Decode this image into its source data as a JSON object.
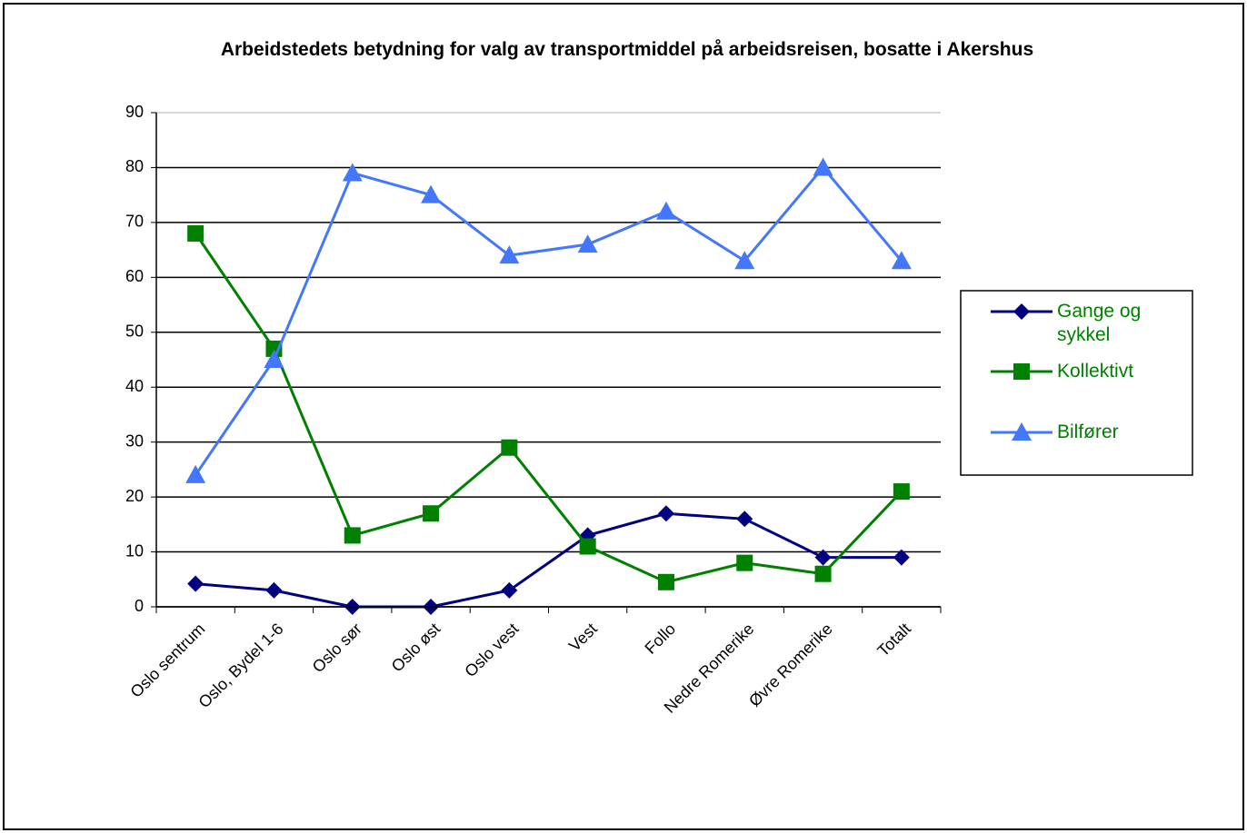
{
  "chart_data": {
    "type": "line",
    "title": "Arbeidstedets betydning for valg av transportmiddel på arbeidsreisen, bosatte i Akershus",
    "categories": [
      "Oslo sentrum",
      "Oslo, Bydel 1-6",
      "Oslo sør",
      "Oslo øst",
      "Oslo vest",
      "Vest",
      "Follo",
      "Nedre Romerike",
      "Øvre Romerike",
      "Totalt"
    ],
    "series": [
      {
        "name": "Gange og sykkel",
        "color": "#000080",
        "marker": "diamond",
        "values": [
          4.2,
          3,
          0,
          0,
          3,
          13,
          17,
          16,
          9,
          9
        ]
      },
      {
        "name": "Kollektivt",
        "color": "#008000",
        "marker": "square",
        "values": [
          68,
          47,
          13,
          17,
          29,
          11,
          4.5,
          8,
          6,
          21
        ]
      },
      {
        "name": "Bilfører",
        "color": "#4477ff",
        "marker": "triangle",
        "values": [
          24,
          45,
          79,
          75,
          64,
          66,
          72,
          63,
          80,
          63
        ]
      }
    ],
    "ylim": [
      0,
      90
    ],
    "yticks": [
      0,
      10,
      20,
      30,
      40,
      50,
      60,
      70,
      80,
      90
    ],
    "grid": true,
    "legend": "right"
  }
}
